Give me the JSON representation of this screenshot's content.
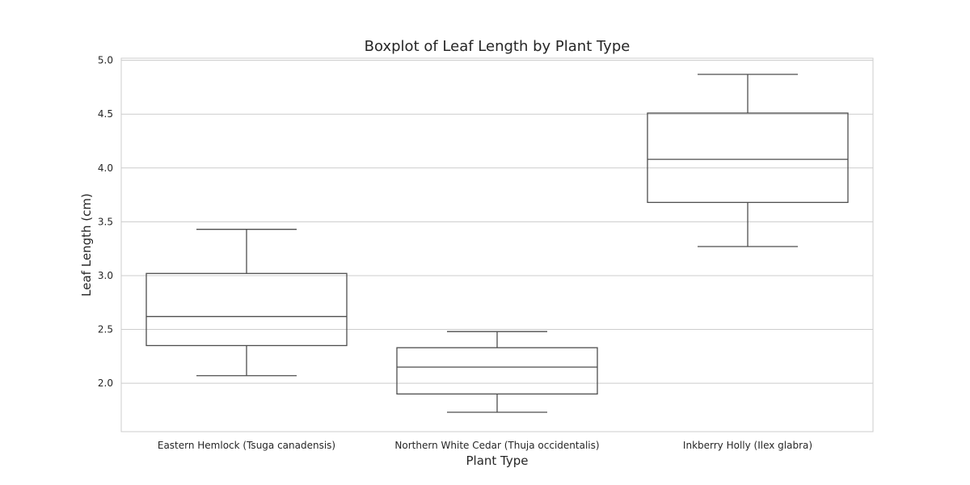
{
  "chart_data": {
    "type": "boxplot",
    "title": "Boxplot of Leaf Length by Plant Type",
    "xlabel": "Plant Type",
    "ylabel": "Leaf Length (cm)",
    "ylim": [
      1.55,
      5.02
    ],
    "yticks": [
      "2.0",
      "2.5",
      "3.0",
      "3.5",
      "4.0",
      "4.5",
      "5.0"
    ],
    "grid": true,
    "categories": [
      "Eastern Hemlock (Tsuga canadensis)",
      "Northern White Cedar (Thuja occidentalis)",
      "Inkberry Holly (Ilex glabra)"
    ],
    "boxes": [
      {
        "whisker_low": 2.07,
        "q1": 2.35,
        "median": 2.62,
        "q3": 3.02,
        "whisker_high": 3.43,
        "color": "#73b7a2"
      },
      {
        "whisker_low": 1.73,
        "q1": 1.9,
        "median": 2.15,
        "q3": 2.33,
        "whisker_high": 2.48,
        "color": "#e99675"
      },
      {
        "whisker_low": 3.27,
        "q1": 3.68,
        "median": 4.08,
        "q3": 4.51,
        "whisker_high": 4.87,
        "color": "#94a4c5"
      }
    ]
  }
}
